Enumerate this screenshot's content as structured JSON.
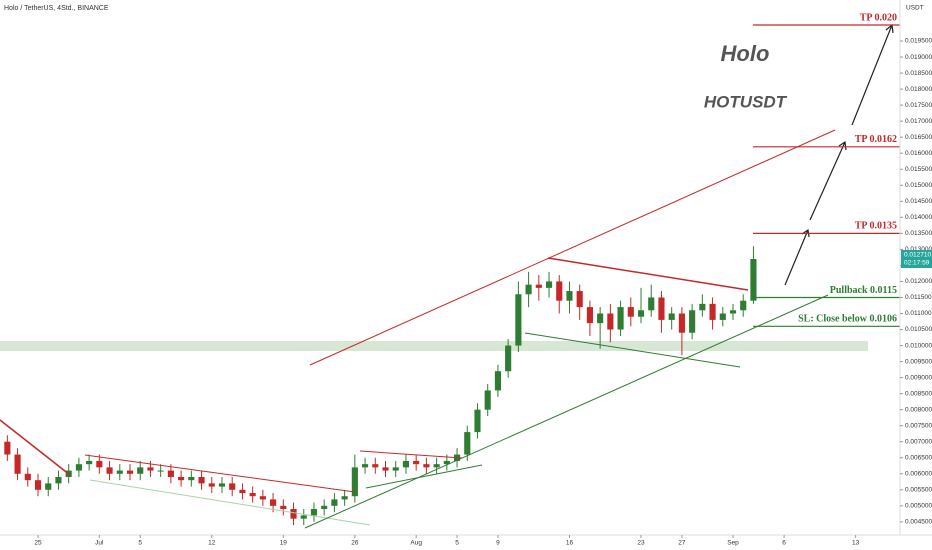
{
  "chart_data": {
    "type": "candlestick",
    "title": "Holo / TetherUS, 4Std., BINANCE",
    "annotations": {
      "name": "Holo",
      "symbol": "HOTUSDT"
    },
    "axis_unit": "USDT",
    "current_price": "0.012710",
    "countdown": "02:17:59",
    "x": [
      -3,
      -2,
      -1,
      0,
      1,
      2,
      3,
      4,
      5,
      6,
      7,
      8,
      9,
      10,
      11,
      12,
      13,
      14,
      15,
      16,
      17,
      18,
      19,
      20,
      21,
      22,
      23,
      24,
      25,
      26,
      27,
      28,
      29,
      30,
      31,
      32,
      33,
      34,
      35,
      36,
      37,
      38,
      39,
      40,
      41,
      42,
      43,
      44,
      45,
      46,
      47,
      48,
      49,
      50,
      51,
      52,
      53,
      54,
      55,
      56,
      57,
      58,
      59,
      60,
      61,
      62,
      63,
      64,
      65,
      66,
      67,
      68,
      69,
      70
    ],
    "open": [
      0.007,
      0.0066,
      0.006,
      0.0058,
      0.0055,
      0.0057,
      0.0059,
      0.0061,
      0.0063,
      0.0064,
      0.0062,
      0.006,
      0.0061,
      0.006,
      0.0062,
      0.0061,
      0.0061,
      0.0059,
      0.0058,
      0.0059,
      0.0057,
      0.0056,
      0.0057,
      0.0055,
      0.0054,
      0.0053,
      0.0052,
      0.005,
      0.0049,
      0.0046,
      0.0047,
      0.0049,
      0.005,
      0.0052,
      0.0053,
      0.0062,
      0.0063,
      0.0062,
      0.0061,
      0.0062,
      0.0064,
      0.0063,
      0.0062,
      0.0063,
      0.0064,
      0.0066,
      0.0073,
      0.008,
      0.0086,
      0.0092,
      0.01,
      0.0116,
      0.0119,
      0.0118,
      0.012,
      0.0114,
      0.0117,
      0.0112,
      0.0107,
      0.011,
      0.0105,
      0.0112,
      0.0109,
      0.0111,
      0.0115,
      0.0108,
      0.011,
      0.0104,
      0.0111,
      0.0113,
      0.0108,
      0.011,
      0.0111,
      0.0114
    ],
    "high": [
      0.0072,
      0.0068,
      0.0062,
      0.006,
      0.0059,
      0.0061,
      0.0063,
      0.0065,
      0.0066,
      0.0066,
      0.0064,
      0.0063,
      0.0063,
      0.0064,
      0.0064,
      0.0063,
      0.0063,
      0.0061,
      0.0061,
      0.0061,
      0.0059,
      0.0059,
      0.0059,
      0.0057,
      0.0056,
      0.0055,
      0.0054,
      0.0052,
      0.0051,
      0.0049,
      0.0051,
      0.0052,
      0.0054,
      0.0055,
      0.0066,
      0.0065,
      0.0065,
      0.0064,
      0.0064,
      0.0066,
      0.0066,
      0.0065,
      0.0065,
      0.0066,
      0.0068,
      0.0075,
      0.0082,
      0.0088,
      0.0094,
      0.0102,
      0.012,
      0.0123,
      0.0122,
      0.0123,
      0.0122,
      0.012,
      0.0119,
      0.0114,
      0.0112,
      0.0113,
      0.0114,
      0.0115,
      0.0118,
      0.0119,
      0.0117,
      0.0112,
      0.0112,
      0.0113,
      0.0116,
      0.0115,
      0.0112,
      0.0113,
      0.0116,
      0.0131
    ],
    "low": [
      0.0064,
      0.0058,
      0.0056,
      0.0053,
      0.0053,
      0.0055,
      0.0057,
      0.0059,
      0.0061,
      0.006,
      0.0058,
      0.0058,
      0.0058,
      0.0058,
      0.0059,
      0.0059,
      0.0057,
      0.0056,
      0.0056,
      0.0055,
      0.0054,
      0.0054,
      0.0053,
      0.0052,
      0.0051,
      0.005,
      0.0048,
      0.0047,
      0.0044,
      0.0044,
      0.0045,
      0.0047,
      0.0048,
      0.005,
      0.0051,
      0.006,
      0.006,
      0.0059,
      0.0059,
      0.006,
      0.0061,
      0.006,
      0.006,
      0.0061,
      0.0062,
      0.0064,
      0.0071,
      0.0078,
      0.0084,
      0.009,
      0.0098,
      0.0112,
      0.0114,
      0.0115,
      0.011,
      0.011,
      0.0108,
      0.0103,
      0.0099,
      0.0101,
      0.0103,
      0.0106,
      0.0107,
      0.0109,
      0.0104,
      0.0105,
      0.0097,
      0.0102,
      0.0109,
      0.0105,
      0.0106,
      0.0108,
      0.0109,
      0.0113
    ],
    "close": [
      0.0066,
      0.006,
      0.0058,
      0.0055,
      0.0057,
      0.0059,
      0.0061,
      0.0063,
      0.0064,
      0.0062,
      0.006,
      0.0061,
      0.006,
      0.0062,
      0.0061,
      0.0061,
      0.0059,
      0.0058,
      0.0059,
      0.0057,
      0.0056,
      0.0057,
      0.0055,
      0.0054,
      0.0053,
      0.0052,
      0.005,
      0.0049,
      0.0046,
      0.0047,
      0.0049,
      0.005,
      0.0052,
      0.0053,
      0.0062,
      0.0063,
      0.0062,
      0.0061,
      0.0062,
      0.0064,
      0.0063,
      0.0062,
      0.0063,
      0.0064,
      0.0066,
      0.0073,
      0.008,
      0.0086,
      0.0092,
      0.01,
      0.0116,
      0.0119,
      0.0118,
      0.012,
      0.0114,
      0.0117,
      0.0112,
      0.0107,
      0.011,
      0.0105,
      0.0112,
      0.0109,
      0.0111,
      0.0115,
      0.0108,
      0.011,
      0.0104,
      0.0111,
      0.0113,
      0.0108,
      0.011,
      0.0111,
      0.0114,
      0.0127
    ],
    "up_color": "#2e7d32",
    "down_color": "#c62828",
    "levels": [
      {
        "label": "TP 0.020",
        "value": 0.02,
        "color": "#c62828"
      },
      {
        "label": "TP 0.0162",
        "value": 0.0162,
        "color": "#c62828"
      },
      {
        "label": "TP 0.0135",
        "value": 0.0135,
        "color": "#c62828"
      },
      {
        "label": "Pullback 0.0115",
        "value": 0.0115,
        "color": "#2e7d32"
      },
      {
        "label": "SL: Close below 0.0106",
        "value": 0.0106,
        "color": "#2e7d32"
      }
    ],
    "xlim": [
      -3.72,
      84.34
    ],
    "ylim": [
      0.00409,
      0.02078
    ],
    "xticks": [
      {
        "value": 0,
        "label": "25"
      },
      {
        "value": 6,
        "label": "Jul"
      },
      {
        "value": 10,
        "label": "5"
      },
      {
        "value": 17,
        "label": "12"
      },
      {
        "value": 24,
        "label": "19"
      },
      {
        "value": 31,
        "label": "26"
      },
      {
        "value": 37,
        "label": "Aug"
      },
      {
        "value": 41,
        "label": "5"
      },
      {
        "value": 45,
        "label": "9"
      },
      {
        "value": 52,
        "label": "16"
      },
      {
        "value": 59,
        "label": "23"
      },
      {
        "value": 63,
        "label": "27"
      },
      {
        "value": 68,
        "label": "Sep"
      },
      {
        "value": 73,
        "label": "6"
      },
      {
        "value": 80,
        "label": "13"
      }
    ],
    "yticks": [
      {
        "value": 0.0045,
        "label": "0.004500"
      },
      {
        "value": 0.005,
        "label": "0.005000"
      },
      {
        "value": 0.0055,
        "label": "0.005500"
      },
      {
        "value": 0.006,
        "label": "0.006000"
      },
      {
        "value": 0.0065,
        "label": "0.006500"
      },
      {
        "value": 0.007,
        "label": "0.007000"
      },
      {
        "value": 0.0075,
        "label": "0.007500"
      },
      {
        "value": 0.008,
        "label": "0.008000"
      },
      {
        "value": 0.0085,
        "label": "0.008500"
      },
      {
        "value": 0.009,
        "label": "0.009000"
      },
      {
        "value": 0.0095,
        "label": "0.009500"
      },
      {
        "value": 0.01,
        "label": "0.010000"
      },
      {
        "value": 0.0105,
        "label": "0.010500"
      },
      {
        "value": 0.011,
        "label": "0.011000"
      },
      {
        "value": 0.0115,
        "label": "0.011500"
      },
      {
        "value": 0.012,
        "label": "0.012000"
      },
      {
        "value": 0.0125,
        "label": "0.012500"
      },
      {
        "value": 0.013,
        "label": "0.013000"
      },
      {
        "value": 0.0135,
        "label": "0.013500"
      },
      {
        "value": 0.014,
        "label": "0.014000"
      },
      {
        "value": 0.0145,
        "label": "0.014500"
      },
      {
        "value": 0.015,
        "label": "0.015000"
      },
      {
        "value": 0.0155,
        "label": "0.015500"
      },
      {
        "value": 0.016,
        "label": "0.016000"
      },
      {
        "value": 0.0165,
        "label": "0.016500"
      },
      {
        "value": 0.017,
        "label": "0.017000"
      },
      {
        "value": 0.0175,
        "label": "0.017500"
      },
      {
        "value": 0.018,
        "label": "0.018000"
      },
      {
        "value": 0.0185,
        "label": "0.018500"
      },
      {
        "value": 0.019,
        "label": "0.019000"
      },
      {
        "value": 0.0195,
        "label": "0.019500"
      }
    ]
  }
}
